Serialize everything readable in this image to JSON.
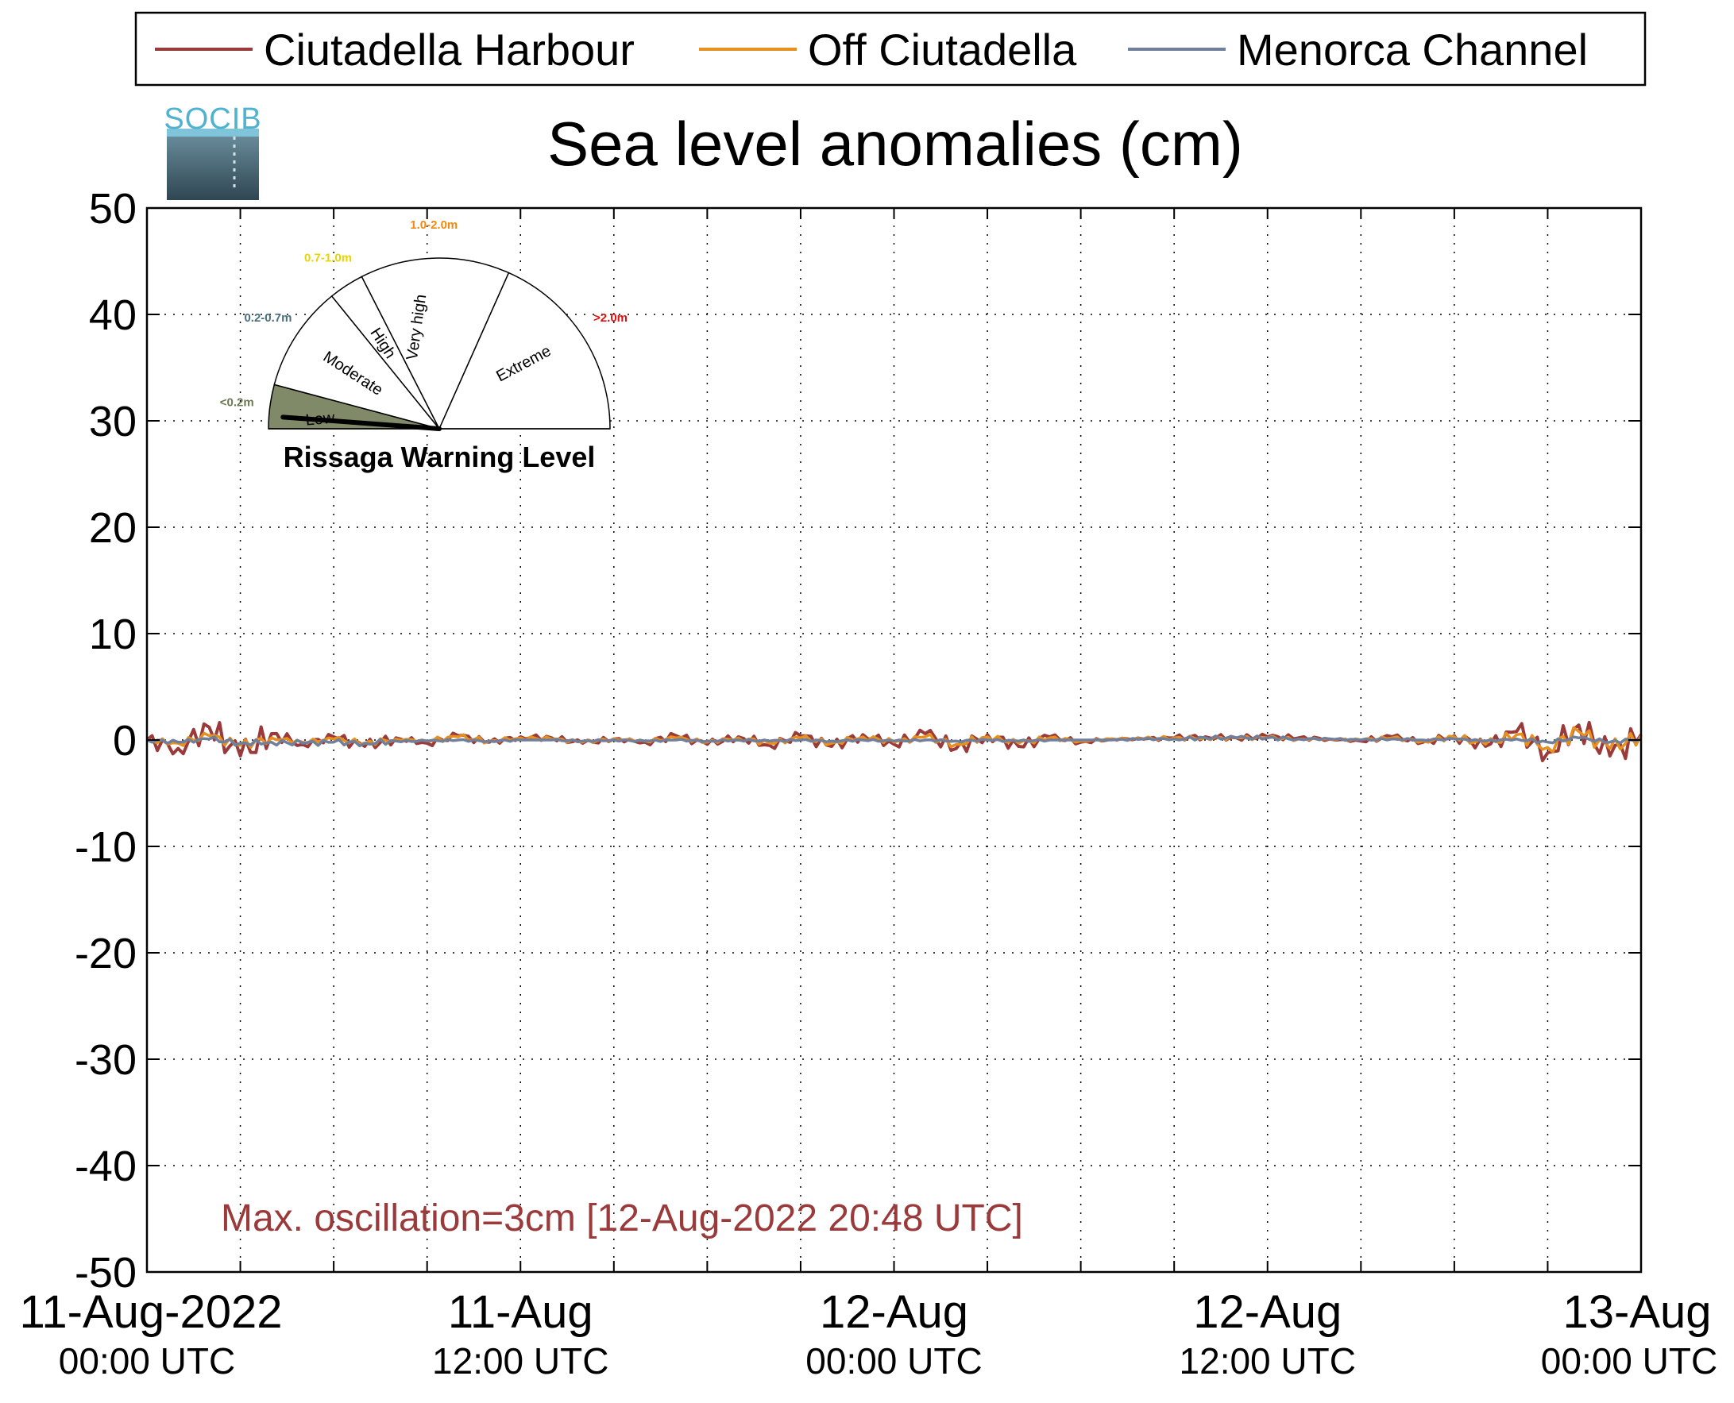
{
  "legend": {
    "entries": [
      {
        "label": "Ciutadella Harbour",
        "color": "#9a3a3a"
      },
      {
        "label": "Off Ciutadella",
        "color": "#e8901e"
      },
      {
        "label": "Menorca Channel",
        "color": "#6f7f9c"
      }
    ]
  },
  "logo": {
    "text": "SOCIB"
  },
  "annotation": {
    "text": "Max. oscillation=3cm [12-Aug-2022 20:48 UTC]",
    "color": "#9a3a3a"
  },
  "gauge": {
    "title": "Rissaga Warning Level",
    "levels": [
      {
        "label": "Low",
        "range": "<0.2m",
        "range_color": "#6b7a52",
        "fill": "#808a68"
      },
      {
        "label": "Moderate",
        "range": "0.2-0.7m",
        "range_color": "#4a6f7a",
        "fill": "#ffffff"
      },
      {
        "label": "High",
        "range": "0.7-1.0m",
        "range_color": "#e8d400",
        "fill": "#ffffff"
      },
      {
        "label": "Very high",
        "range": "1.0-2.0m",
        "range_color": "#f08a10",
        "fill": "#ffffff"
      },
      {
        "label": "Extreme",
        "range": ">2.0m",
        "range_color": "#e01010",
        "fill": "#ffffff"
      }
    ],
    "current_level": "Low"
  },
  "chart_data": {
    "type": "line",
    "title": "Sea level anomalies (cm)",
    "xlabel": "",
    "ylabel": "",
    "ylim": [
      -50,
      50
    ],
    "yticks": [
      50,
      40,
      30,
      20,
      10,
      0,
      -10,
      -20,
      -30,
      -40,
      -50
    ],
    "xlim": [
      "2022-08-11 00:00 UTC",
      "2022-08-13 00:00 UTC"
    ],
    "xtick_labels": [
      {
        "date": "11-Aug-2022",
        "time": "00:00 UTC"
      },
      {
        "date": "11-Aug",
        "time": "12:00 UTC"
      },
      {
        "date": "12-Aug",
        "time": "00:00 UTC"
      },
      {
        "date": "12-Aug",
        "time": "12:00 UTC"
      },
      {
        "date": "13-Aug",
        "time": "00:00 UTC"
      }
    ],
    "grid": true,
    "legend_position": "top",
    "x_hours": [
      0,
      1,
      2,
      3,
      4,
      5,
      6,
      7,
      8,
      9,
      10,
      11,
      12,
      13,
      14,
      15,
      16,
      17,
      18,
      19,
      20,
      21,
      22,
      23,
      24,
      25,
      26,
      27,
      28,
      29,
      30,
      31,
      32,
      33,
      34,
      35,
      36,
      37,
      38,
      39,
      40,
      41,
      42,
      43,
      44,
      45,
      46,
      47,
      48
    ],
    "series": [
      {
        "name": "Ciutadella Harbour",
        "color": "#9a3a3a",
        "values": [
          0,
          -0.8,
          1.2,
          -1.5,
          0.6,
          -0.4,
          0.3,
          -0.6,
          0.2,
          -0.3,
          0.4,
          -0.2,
          0.3,
          0.2,
          -0.3,
          0.1,
          -0.2,
          0.4,
          -0.4,
          0.3,
          -0.5,
          0.4,
          -0.6,
          0.5,
          -0.4,
          0.6,
          -0.8,
          0.5,
          -0.6,
          0.3,
          -0.2,
          0.1,
          0.1,
          0.2,
          0.3,
          0.2,
          0.3,
          0.2,
          0.1,
          -0.1,
          0.3,
          -0.2,
          0.4,
          -0.6,
          0.8,
          -1.2,
          1.4,
          -1.5,
          0.5
        ]
      },
      {
        "name": "Off Ciutadella",
        "color": "#e8901e",
        "values": [
          0,
          -0.3,
          0.4,
          -0.5,
          0.2,
          -0.2,
          0.1,
          -0.3,
          0.1,
          -0.1,
          0.3,
          -0.1,
          0.2,
          0.1,
          -0.2,
          0.1,
          -0.1,
          0.2,
          -0.2,
          0.2,
          -0.3,
          0.2,
          -0.3,
          0.3,
          -0.2,
          0.3,
          -0.4,
          0.3,
          -0.3,
          0.2,
          -0.1,
          0.1,
          0.1,
          0.2,
          0.2,
          0.2,
          0.2,
          0.1,
          0.1,
          0,
          0.2,
          -0.1,
          0.3,
          -0.4,
          0.5,
          -0.7,
          0.8,
          -0.8,
          0.4
        ]
      },
      {
        "name": "Menorca Channel",
        "color": "#6f7f9c",
        "values": [
          0,
          -0.2,
          0.1,
          -0.3,
          -0.2,
          -0.3,
          -0.2,
          -0.3,
          -0.1,
          -0.1,
          0,
          -0.1,
          0,
          0,
          -0.1,
          0,
          -0.1,
          0,
          -0.1,
          0,
          -0.1,
          0,
          -0.1,
          0,
          -0.1,
          0,
          -0.1,
          0,
          -0.1,
          0,
          0,
          0,
          0.1,
          0.1,
          0.2,
          0.2,
          0.2,
          0.1,
          0.1,
          0,
          0.1,
          0,
          0.1,
          -0.1,
          0.1,
          -0.2,
          0.2,
          -0.2,
          0.1
        ]
      }
    ]
  }
}
